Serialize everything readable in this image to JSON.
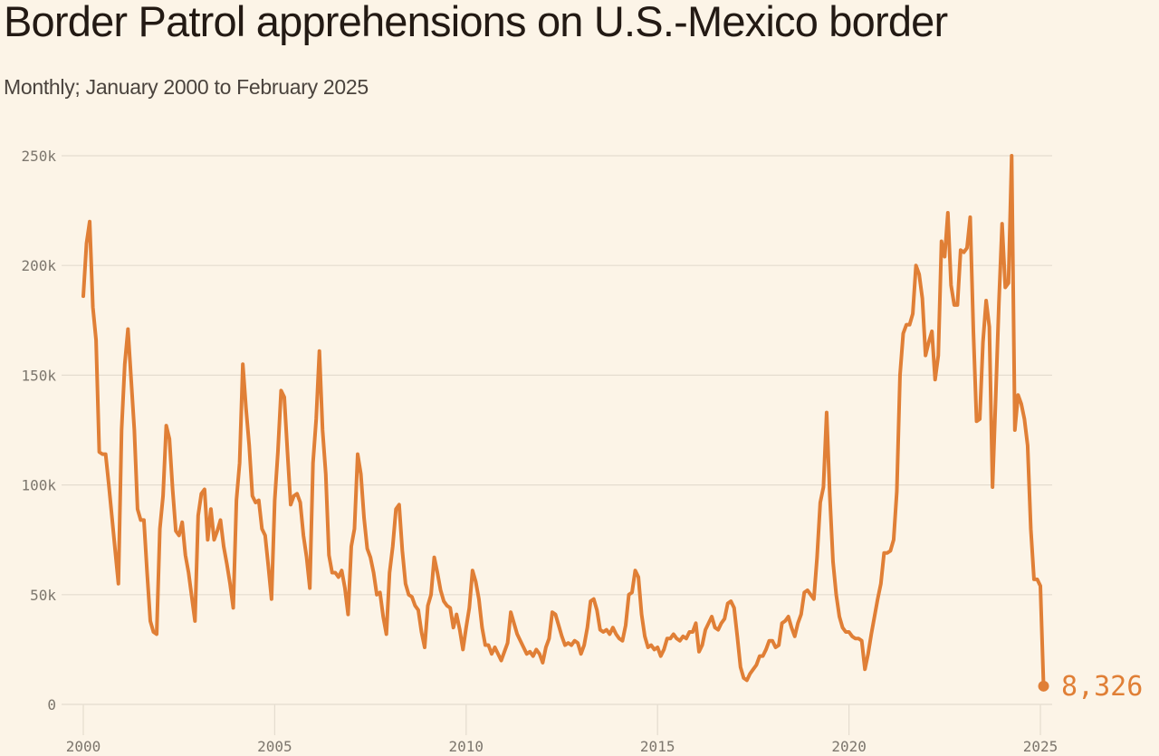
{
  "header": {
    "title": "Border Patrol apprehensions on U.S.-Mexico border",
    "subtitle": "Monthly; January 2000 to February 2025"
  },
  "colors": {
    "line": "#e07f36",
    "grid": "#e4dccf",
    "background": "#fcf4e7",
    "text": "#231a14",
    "tick": "#7c766d"
  },
  "chart_data": {
    "type": "line",
    "title": "Border Patrol apprehensions on U.S.-Mexico border",
    "subtitle": "Monthly; January 2000 to February 2025",
    "xlabel": "",
    "ylabel": "",
    "x_start": "2000-01",
    "x_end": "2025-02",
    "frequency": "monthly",
    "xlim": [
      2000,
      2025.1
    ],
    "ylim": [
      0,
      250000
    ],
    "grid": true,
    "y_ticks": [
      0,
      50000,
      100000,
      150000,
      200000,
      250000
    ],
    "y_tick_labels": [
      "0",
      "50k",
      "100k",
      "150k",
      "200k",
      "250k"
    ],
    "x_ticks": [
      2000,
      2005,
      2010,
      2015,
      2020,
      2025
    ],
    "x_tick_labels": [
      "2000",
      "2005",
      "2010",
      "2015",
      "2020",
      "2025"
    ],
    "end_label": "8,326",
    "series": [
      {
        "name": "Apprehensions",
        "values": [
          186000,
          210000,
          220000,
          181000,
          166000,
          115000,
          114000,
          114000,
          100000,
          85000,
          70000,
          55000,
          125000,
          155000,
          171000,
          148000,
          125000,
          89000,
          84000,
          84000,
          60000,
          38000,
          33000,
          32000,
          80000,
          95000,
          127000,
          121000,
          98000,
          79000,
          77000,
          83000,
          68000,
          60000,
          49000,
          38000,
          86000,
          96000,
          98000,
          75000,
          89000,
          75000,
          79000,
          84000,
          72000,
          64000,
          55000,
          44000,
          93000,
          110000,
          155000,
          135000,
          118000,
          95000,
          92000,
          93000,
          80000,
          77000,
          63000,
          48000,
          93000,
          115000,
          143000,
          140000,
          115000,
          91000,
          95000,
          96000,
          92000,
          77000,
          67000,
          53000,
          110000,
          130000,
          161000,
          125000,
          105000,
          68000,
          60000,
          60000,
          58000,
          61000,
          53000,
          41000,
          72000,
          80000,
          114000,
          105000,
          85000,
          71000,
          67000,
          60000,
          50000,
          51000,
          40000,
          32000,
          60000,
          72000,
          89000,
          91000,
          70000,
          55000,
          50000,
          49000,
          45000,
          43000,
          33000,
          26000,
          45000,
          50000,
          67000,
          60000,
          52000,
          47000,
          45000,
          44000,
          35000,
          41000,
          34000,
          25000,
          35000,
          44000,
          61000,
          56000,
          48000,
          35000,
          27000,
          27000,
          23000,
          26000,
          23000,
          20000,
          24000,
          28000,
          42000,
          37000,
          32000,
          29000,
          26000,
          23000,
          24000,
          22000,
          25000,
          23000,
          19000,
          26000,
          30000,
          42000,
          41000,
          36000,
          31000,
          27000,
          28000,
          27000,
          29000,
          28000,
          23000,
          27000,
          35000,
          47000,
          48000,
          43000,
          34000,
          33000,
          34000,
          32000,
          35000,
          32000,
          30000,
          29000,
          36000,
          50000,
          51000,
          61000,
          58000,
          41000,
          31000,
          26000,
          27000,
          25000,
          26000,
          22000,
          25000,
          30000,
          30000,
          32000,
          30000,
          29000,
          31000,
          30000,
          33000,
          33000,
          37000,
          24000,
          27000,
          34000,
          37000,
          40000,
          35000,
          34000,
          37000,
          39000,
          46000,
          47000,
          44000,
          31000,
          17000,
          12000,
          11000,
          14000,
          16000,
          18000,
          22000,
          22000,
          25000,
          29000,
          29000,
          26000,
          27000,
          37000,
          38000,
          40000,
          35000,
          31000,
          37000,
          41000,
          51000,
          52000,
          50000,
          48000,
          67000,
          92000,
          99000,
          133000,
          95000,
          65000,
          50000,
          40000,
          35000,
          33000,
          33000,
          31000,
          30000,
          30000,
          29000,
          16000,
          23000,
          32000,
          40000,
          48000,
          55000,
          69000,
          69000,
          70000,
          75000,
          97000,
          150000,
          169000,
          173000,
          173000,
          178000,
          200000,
          196000,
          185000,
          159000,
          165000,
          170000,
          148000,
          159000,
          211000,
          204000,
          224000,
          191000,
          182000,
          182000,
          207000,
          206000,
          208000,
          222000,
          170000,
          129000,
          130000,
          165000,
          184000,
          172000,
          99000,
          140000,
          183000,
          219000,
          190000,
          192000,
          250000,
          125000,
          141000,
          137000,
          130000,
          118000,
          80000,
          57000,
          57000,
          54000,
          8326
        ]
      }
    ]
  }
}
